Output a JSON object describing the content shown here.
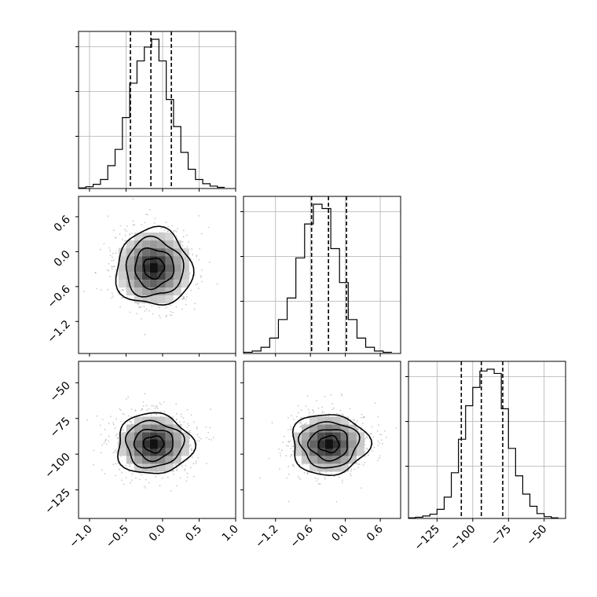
{
  "chart_data": {
    "type": "corner",
    "title": "",
    "parameters": [
      {
        "range": [
          -1.15,
          1.0
        ]
      },
      {
        "range": [
          -1.75,
          0.95
        ]
      },
      {
        "range": [
          -145,
          -35
        ]
      }
    ],
    "grid": true,
    "quantiles": [
      0.16,
      0.5,
      0.84
    ],
    "quantile_values": [
      [
        -0.44,
        -0.16,
        0.12
      ],
      [
        -0.58,
        -0.29,
        0.02
      ],
      [
        -108,
        -94,
        -79
      ]
    ],
    "diag_hist": [
      {
        "bin_edges": [
          -1.15,
          -1.05,
          -0.95,
          -0.85,
          -0.75,
          -0.65,
          -0.55,
          -0.45,
          -0.35,
          -0.25,
          -0.15,
          -0.05,
          0.05,
          0.15,
          0.25,
          0.35,
          0.45,
          0.55,
          0.65,
          0.75,
          0.85
        ],
        "counts": [
          1,
          3,
          7,
          15,
          38,
          65,
          118,
          175,
          212,
          235,
          248,
          212,
          148,
          103,
          60,
          32,
          15,
          8,
          4,
          2
        ]
      },
      {
        "bin_edges": [
          -1.75,
          -1.6,
          -1.45,
          -1.3,
          -1.15,
          -1.0,
          -0.85,
          -0.7,
          -0.55,
          -0.4,
          -0.25,
          -0.1,
          0.05,
          0.2,
          0.35,
          0.5,
          0.65,
          0.8
        ],
        "counts": [
          2,
          4,
          10,
          25,
          55,
          90,
          155,
          210,
          242,
          235,
          170,
          115,
          55,
          25,
          10,
          4,
          2
        ]
      },
      {
        "bin_edges": [
          -145,
          -140,
          -135,
          -130,
          -125,
          -120,
          -115,
          -110,
          -105,
          -100,
          -95,
          -90,
          -85,
          -80,
          -75,
          -70,
          -65,
          -60,
          -55,
          -50,
          -45,
          -40
        ],
        "counts": [
          1,
          2,
          4,
          7,
          15,
          35,
          75,
          130,
          185,
          215,
          242,
          245,
          238,
          180,
          115,
          70,
          40,
          20,
          8,
          3,
          1
        ]
      }
    ],
    "pairs": [
      {
        "x": 0,
        "y": 1,
        "center": [
          -0.12,
          -0.28
        ],
        "contour_levels": [
          "0.5 sigma",
          "1 sigma",
          "1.5 sigma",
          "2 sigma"
        ]
      },
      {
        "x": 0,
        "y": 2,
        "center": [
          -0.12,
          -93
        ],
        "contour_levels": [
          "0.5 sigma",
          "1 sigma",
          "1.5 sigma",
          "2 sigma"
        ]
      },
      {
        "x": 1,
        "y": 2,
        "center": [
          -0.28,
          -93
        ],
        "contour_levels": [
          "0.5 sigma",
          "1 sigma",
          "1.5 sigma",
          "2 sigma"
        ]
      }
    ],
    "xticks": [
      {
        "values": [
          -1.0,
          -0.5,
          0.0,
          0.5,
          1.0
        ],
        "labels": [
          "−1.0",
          "−0.5",
          "0.0",
          "0.5",
          "1.0"
        ]
      },
      {
        "values": [
          -1.2,
          -0.6,
          0.0,
          0.6
        ],
        "labels": [
          "−1.2",
          "−0.6",
          "0.0",
          "0.6"
        ]
      },
      {
        "values": [
          -125,
          -100,
          -75,
          -50
        ],
        "labels": [
          "−125",
          "−100",
          "−75",
          "−50"
        ]
      }
    ],
    "yticks": [
      {
        "values": [
          0.6,
          0.0,
          -0.6,
          -1.2
        ],
        "labels": [
          "0.6",
          "0.0",
          "−0.6",
          "−1.2"
        ]
      },
      {
        "values": [
          -50,
          -75,
          -100,
          -125
        ],
        "labels": [
          "−50",
          "−75",
          "−100",
          "−125"
        ]
      }
    ]
  }
}
